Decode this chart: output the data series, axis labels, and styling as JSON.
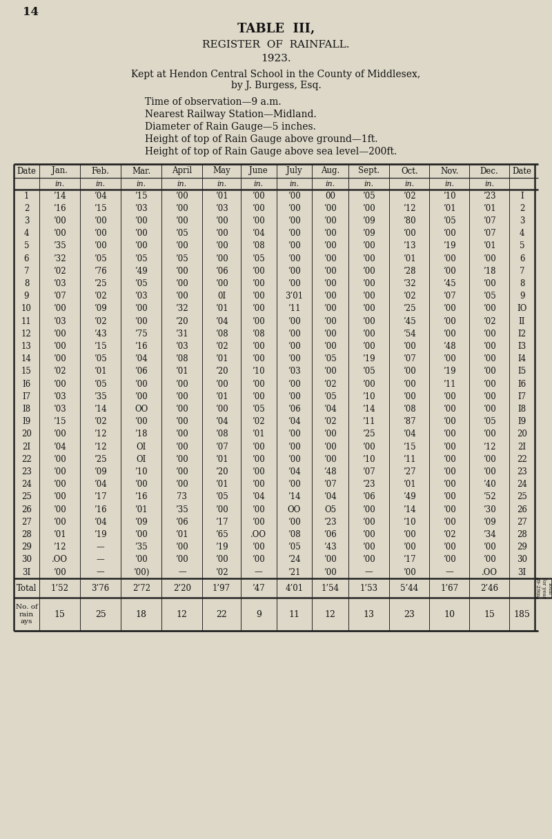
{
  "page_number": "14",
  "title1": "TABLE  III,",
  "title2": "REGISTER  OF  RAINFALL.",
  "title3": "1923.",
  "subtitle1": "Kept at Hendon Central School in the County of Middlesex,",
  "subtitle2": "by J. Burgess, Esq.",
  "info1": "Time of observation—9 a.m.",
  "info2": "Nearest Railway Station—Midland.",
  "info3": "Diameter of Rain Gauge—5 inches.",
  "info4": "Height of top of Rain Gauge above ground—1ft.",
  "info5": "Height of top of Rain Gauge above sea level—200ft.",
  "col_headers": [
    "Date",
    "Jan.",
    "Feb.",
    "Mar.",
    "April",
    "May",
    "June",
    "July",
    "Aug.",
    "Sept.",
    "Oct.",
    "Nov.",
    "Dec.",
    "Date"
  ],
  "col_units": [
    "",
    "in.",
    "in.",
    "in.",
    "in.",
    "in.",
    "in.",
    "in.",
    "in.",
    "in.",
    "in.",
    "in.",
    "in.",
    ""
  ],
  "rows": [
    [
      "1",
      "’14",
      "’04",
      "’15",
      "’00",
      "’01",
      "’00",
      "’00",
      "00",
      "’05",
      "’02",
      "’10",
      "’23",
      "I"
    ],
    [
      "2",
      "’16",
      "’15",
      "’03",
      "’00",
      "’03",
      "’00",
      "’00",
      "’00",
      "’00",
      "’12",
      "’01",
      "’01",
      "2"
    ],
    [
      "3",
      "’00",
      "’00",
      "’00",
      "’00",
      "’00",
      "’00",
      "’00",
      "’00",
      "’09",
      "’80",
      "’05",
      "’07",
      "3"
    ],
    [
      "4",
      "’00",
      "’00",
      "’00",
      "’05",
      "’00",
      "’04",
      "’00",
      "’00",
      "’09",
      "’00",
      "’00",
      "’07",
      "4"
    ],
    [
      "5",
      "’35",
      "’00",
      "’00",
      "’00",
      "’00",
      "’08",
      "’00",
      "’00",
      "’00",
      "’13",
      "’19",
      "’01",
      "5"
    ],
    [
      "6",
      "’32",
      "’05",
      "’05",
      "’05",
      "’00",
      "’05",
      "’00",
      "’00",
      "’00",
      "’01",
      "’00",
      "’00",
      "6"
    ],
    [
      "7",
      "’02",
      "’76",
      "’49",
      "’00",
      "’06",
      "’00",
      "’00",
      "’00",
      "’00",
      "’28",
      "’00",
      "’18",
      "7"
    ],
    [
      "8",
      "’03",
      "’25",
      "’05",
      "’00",
      "’00",
      "’00",
      "’00",
      "’00",
      "’00",
      "’32",
      "’45",
      "’00",
      "8"
    ],
    [
      "9",
      "’07",
      "’02",
      "’03",
      "’00",
      "0I",
      "’00",
      "3’01",
      "’00",
      "’00",
      "’02",
      "’07",
      "’05",
      "9"
    ],
    [
      "10",
      "’00",
      "’09",
      "’00",
      "’32",
      "’01",
      "’00",
      "’11",
      "’00",
      "’00",
      "’25",
      "’00",
      "’00",
      "IO"
    ],
    [
      "11",
      "’03",
      "’02",
      "’00",
      "’20",
      "’04",
      "’00",
      "’00",
      "’00",
      "’00",
      "’45",
      "’00",
      "’02",
      "II"
    ],
    [
      "12",
      "’00",
      "’43",
      "’75",
      "’31",
      "’08",
      "’08",
      "’00",
      "’00",
      "’00",
      "’54",
      "’00",
      "’00",
      "I2"
    ],
    [
      "13",
      "’00",
      "’15",
      "’16",
      "’03",
      "’02",
      "’00",
      "’00",
      "’00",
      "’00",
      "’00",
      "’48",
      "’00",
      "I3"
    ],
    [
      "14",
      "’00",
      "’05",
      "’04",
      "’08",
      "’01",
      "’00",
      "’00",
      "’05",
      "’19",
      "’07",
      "’00",
      "’00",
      "I4"
    ],
    [
      "15",
      "’02",
      "’01",
      "’06",
      "’01",
      "’20",
      "’10",
      "’03",
      "’00",
      "’05",
      "’00",
      "’19",
      "’00",
      "I5"
    ],
    [
      "I6",
      "’00",
      "’05",
      "’00",
      "’00",
      "’00",
      "’00",
      "’00",
      "’02",
      "’00",
      "’00",
      "’11",
      "’00",
      "I6"
    ],
    [
      "I7",
      "’03",
      "’35",
      "’00",
      "’00",
      "’01",
      "’00",
      "’00",
      "’05",
      "’10",
      "’00",
      "’00",
      "’00",
      "I7"
    ],
    [
      "I8",
      "’03",
      "’14",
      "OO",
      "’00",
      "’00",
      "’05",
      "’06",
      "’04",
      "’14",
      "’08",
      "’00",
      "’00",
      "I8"
    ],
    [
      "I9",
      "’15",
      "’02",
      "’00",
      "’00",
      "’04",
      "’02",
      "’04",
      "’02",
      "’11",
      "’87",
      "’00",
      "’05",
      "I9"
    ],
    [
      "20",
      "’00",
      "’12",
      "’18",
      "’00",
      "’08",
      "’01",
      "’00",
      "’00",
      "’25",
      "’04",
      "’00",
      "’00",
      "20"
    ],
    [
      "2I",
      "’04",
      "’12",
      "OI",
      "’00",
      "’07",
      "’00",
      "’00",
      "’00",
      "’00",
      "’15",
      "’00",
      "’12",
      "2I"
    ],
    [
      "22",
      "’00",
      "’25",
      "OI",
      "’00",
      "’01",
      "’00",
      "’00",
      "’00",
      "’10",
      "’11",
      "’00",
      "’00",
      "22"
    ],
    [
      "23",
      "’00",
      "’09",
      "’10",
      "’00",
      "’20",
      "’00",
      "’04",
      "’48",
      "’07",
      "’27",
      "’00",
      "’00",
      "23"
    ],
    [
      "24",
      "’00",
      "’04",
      "’00",
      "’00",
      "’01",
      "’00",
      "’00",
      "’07",
      "’23",
      "’01",
      "’00",
      "’40",
      "24"
    ],
    [
      "25",
      "’00",
      "’17",
      "’16",
      "73",
      "’05",
      "’04",
      "’14",
      "’04",
      "’06",
      "’49",
      "’00",
      "’52",
      "25"
    ],
    [
      "26",
      "’00",
      "’16",
      "’01",
      "’35",
      "’00",
      "’00",
      "OO",
      "O5",
      "’00",
      "’14",
      "’00",
      "’30",
      "26"
    ],
    [
      "27",
      "’00",
      "’04",
      "’09",
      "’06",
      "’17",
      "’00",
      "’00",
      "’23",
      "’00",
      "’10",
      "’00",
      "’09",
      "27"
    ],
    [
      "28",
      "’01",
      "’19",
      "’00",
      "’01",
      "’65",
      ".OO",
      "’08",
      "’06",
      "’00",
      "’00",
      "’02",
      "’34",
      "28"
    ],
    [
      "29",
      "’12",
      "—",
      "’35",
      "’00",
      "’19",
      "’00",
      "’05",
      "’43",
      "’00",
      "’00",
      "’00",
      "’00",
      "29"
    ],
    [
      "30",
      ".OO",
      "—",
      "’00",
      "’00",
      "’00",
      "’00",
      "’24",
      "’00",
      "’00",
      "’17",
      "’00",
      "’00",
      "30"
    ],
    [
      "3I",
      "’00",
      "—",
      "’00)",
      "—",
      "’02",
      "—",
      "’21",
      "’00",
      "—",
      "’00",
      "—",
      ".OO",
      "3I"
    ]
  ],
  "totals": [
    "Total",
    "1’52",
    "3’76",
    "2’72",
    "2’20",
    "1’97",
    "’47",
    "4’01",
    "1’54",
    "1’53",
    "5’44",
    "1’67",
    "2’46"
  ],
  "total_year_lines": [
    "Total",
    "for year",
    "29·29in."
  ],
  "rain_days_label": "No. of\nrain\nays",
  "rain_days": [
    "15",
    "25",
    "18",
    "12",
    "22",
    "9",
    "11",
    "12",
    "13",
    "23",
    "10",
    "15",
    "185"
  ],
  "bg_color": "#ddd8c8",
  "text_color": "#111111",
  "table_line_color": "#222222"
}
